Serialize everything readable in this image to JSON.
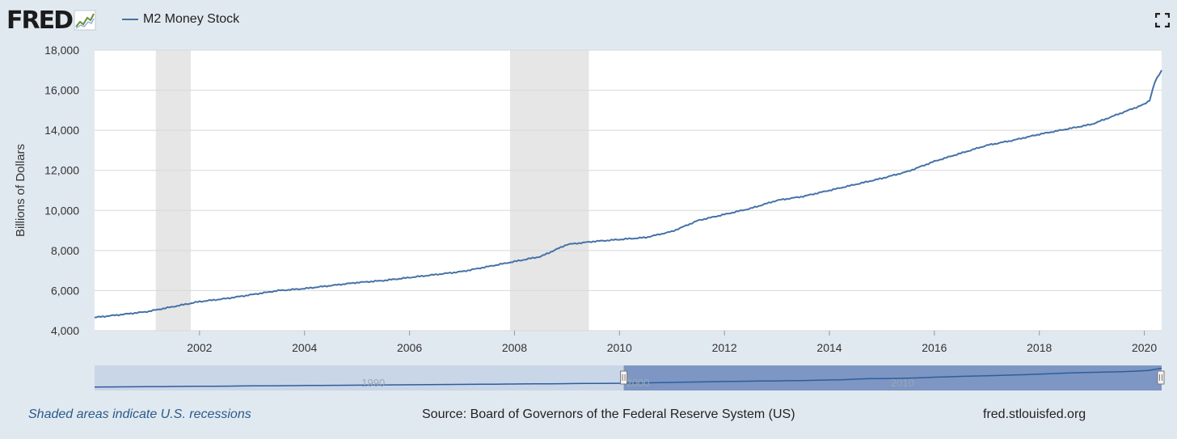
{
  "header": {
    "logo_text": "FRED",
    "legend_label": "M2 Money Stock",
    "fullscreen_icon": "fullscreen-icon"
  },
  "colors": {
    "series": "#4572a7",
    "recession": "#e6e6e6",
    "background": "#e1e9f0",
    "plot_bg": "#ffffff",
    "navigator_fill": "#c9d6e8",
    "navigator_selected": "#7d96c4"
  },
  "chart_data": {
    "type": "line",
    "title": "",
    "xlabel": "",
    "ylabel": "Billions of Dollars",
    "xlim": [
      2000.0,
      2020.33
    ],
    "ylim": [
      4000,
      18000
    ],
    "grid": true,
    "legend": "top-left",
    "x_ticks": [
      "2002",
      "2004",
      "2006",
      "2008",
      "2010",
      "2012",
      "2014",
      "2016",
      "2018",
      "2020"
    ],
    "y_ticks": [
      "4,000",
      "6,000",
      "8,000",
      "10,000",
      "12,000",
      "14,000",
      "16,000",
      "18,000"
    ],
    "recessions": [
      {
        "start": "2001-03",
        "end": "2001-11"
      },
      {
        "start": "2007-12",
        "end": "2009-06"
      }
    ],
    "series": [
      {
        "name": "M2 Money Stock",
        "x": [
          2000.0,
          2000.5,
          2001.0,
          2001.5,
          2002.0,
          2002.5,
          2003.0,
          2003.5,
          2004.0,
          2004.5,
          2005.0,
          2005.5,
          2006.0,
          2006.5,
          2007.0,
          2007.5,
          2008.0,
          2008.5,
          2009.0,
          2009.5,
          2010.0,
          2010.5,
          2011.0,
          2011.5,
          2012.0,
          2012.5,
          2013.0,
          2013.5,
          2014.0,
          2014.5,
          2015.0,
          2015.5,
          2016.0,
          2016.5,
          2017.0,
          2017.5,
          2018.0,
          2018.5,
          2019.0,
          2019.5,
          2020.0,
          2020.1,
          2020.2,
          2020.33
        ],
        "values": [
          4660,
          4800,
          4950,
          5200,
          5450,
          5600,
          5800,
          6000,
          6100,
          6250,
          6400,
          6500,
          6650,
          6800,
          6950,
          7200,
          7450,
          7700,
          8300,
          8450,
          8550,
          8650,
          8950,
          9500,
          9800,
          10100,
          10500,
          10700,
          11000,
          11300,
          11600,
          11950,
          12450,
          12850,
          13250,
          13500,
          13800,
          14050,
          14300,
          14800,
          15300,
          15500,
          16400,
          17000
        ]
      }
    ],
    "navigator": {
      "labels": [
        "1990",
        "2000",
        "2010"
      ]
    }
  },
  "footer": {
    "recession_note": "Shaded areas indicate U.S. recessions",
    "source": "Source: Board of Governors of the Federal Reserve System (US)",
    "url": "fred.stlouisfed.org"
  }
}
